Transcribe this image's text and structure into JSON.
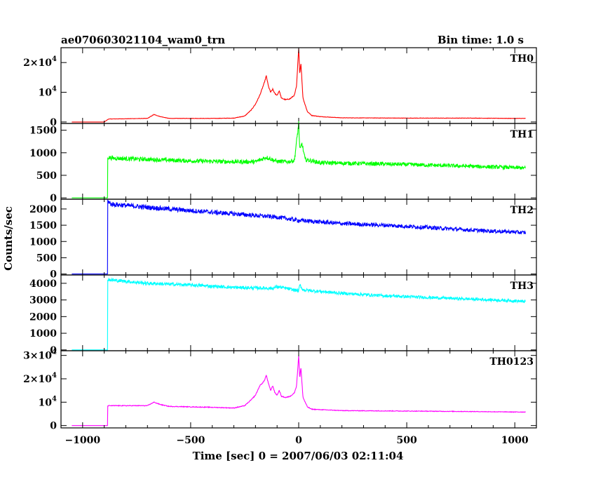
{
  "header": {
    "title": "ae070603021104_wam0_trn",
    "bin_time": "Bin time: 1.0 s"
  },
  "chart_data": {
    "type": "line",
    "xlabel": "Time [sec] 0 = 2007/06/03 02:11:04",
    "ylabel": "Counts/sec",
    "xlim": [
      -1100,
      1100
    ],
    "x_ticks": [
      -1000,
      -500,
      0,
      500,
      1000
    ],
    "x_tick_labels": [
      "−1000",
      "−500",
      "0",
      "500",
      "1000"
    ],
    "panels": [
      {
        "name": "TH0",
        "color": "#ff0000",
        "ylim": [
          -500,
          25000
        ],
        "y_ticks": [
          {
            "value": 0,
            "label": "0"
          },
          {
            "value": 10000,
            "label": "10",
            "exp": "4"
          },
          {
            "value": 20000,
            "label": "2×10",
            "exp": "4"
          }
        ],
        "x": [
          -1050,
          -900,
          -880,
          -700,
          -670,
          -640,
          -600,
          -400,
          -300,
          -250,
          -220,
          -200,
          -180,
          -160,
          -150,
          -140,
          -130,
          -120,
          -110,
          -100,
          -90,
          -80,
          -60,
          -40,
          -20,
          -10,
          0,
          5,
          10,
          20,
          40,
          60,
          100,
          200,
          500,
          800,
          1000,
          1050
        ],
        "values": [
          0,
          0,
          1000,
          1200,
          2500,
          1800,
          1200,
          1200,
          1300,
          2000,
          4000,
          6000,
          9000,
          13000,
          15500,
          12000,
          10000,
          11000,
          9500,
          9000,
          10500,
          8000,
          7500,
          7800,
          9000,
          12000,
          25000,
          16000,
          20000,
          8000,
          3500,
          2200,
          1800,
          1400,
          1300,
          1300,
          1200,
          1200
        ]
      },
      {
        "name": "TH1",
        "color": "#00ff00",
        "ylim": [
          -30,
          1650
        ],
        "y_ticks": [
          {
            "value": 0,
            "label": "0"
          },
          {
            "value": 500,
            "label": "500"
          },
          {
            "value": 1000,
            "label": "1000"
          },
          {
            "value": 1500,
            "label": "1500"
          }
        ],
        "x": [
          -1050,
          -885,
          -884,
          -860,
          -500,
          -300,
          -200,
          -150,
          -100,
          -50,
          -20,
          0,
          5,
          15,
          30,
          100,
          300,
          500,
          800,
          1000,
          1050
        ],
        "values": [
          0,
          0,
          900,
          880,
          820,
          800,
          800,
          900,
          810,
          800,
          830,
          1650,
          1050,
          1200,
          850,
          780,
          760,
          740,
          700,
          670,
          660
        ]
      },
      {
        "name": "TH2",
        "color": "#0000ff",
        "ylim": [
          -30,
          2300
        ],
        "y_ticks": [
          {
            "value": 0,
            "label": "0"
          },
          {
            "value": 500,
            "label": "500"
          },
          {
            "value": 1000,
            "label": "1000"
          },
          {
            "value": 1500,
            "label": "1500"
          },
          {
            "value": 2000,
            "label": "2000"
          }
        ],
        "x": [
          -1050,
          -885,
          -884,
          -870,
          -700,
          -500,
          -300,
          -100,
          0,
          200,
          400,
          600,
          800,
          1000,
          1050
        ],
        "values": [
          0,
          0,
          2250,
          2150,
          2050,
          1950,
          1850,
          1750,
          1650,
          1550,
          1500,
          1430,
          1350,
          1290,
          1270
        ]
      },
      {
        "name": "TH3",
        "color": "#00ffff",
        "ylim": [
          -50,
          4500
        ],
        "y_ticks": [
          {
            "value": 0,
            "label": "0"
          },
          {
            "value": 1000,
            "label": "1000"
          },
          {
            "value": 2000,
            "label": "2000"
          },
          {
            "value": 3000,
            "label": "3000"
          },
          {
            "value": 4000,
            "label": "4000"
          }
        ],
        "x": [
          -1050,
          -885,
          -884,
          -870,
          -700,
          -500,
          -300,
          -120,
          -100,
          0,
          5,
          20,
          200,
          400,
          600,
          800,
          1000,
          1050
        ],
        "values": [
          0,
          0,
          4250,
          4200,
          4000,
          3900,
          3750,
          3700,
          3800,
          3550,
          3900,
          3600,
          3400,
          3250,
          3150,
          3050,
          2950,
          2900
        ]
      },
      {
        "name": "TH0123",
        "color": "#ff00ff",
        "ylim": [
          -1000,
          32000
        ],
        "y_ticks": [
          {
            "value": 0,
            "label": "0"
          },
          {
            "value": 10000,
            "label": "10",
            "exp": "4"
          },
          {
            "value": 20000,
            "label": "2×10",
            "exp": "4"
          },
          {
            "value": 30000,
            "label": "3×10",
            "exp": "4"
          }
        ],
        "x": [
          -1050,
          -885,
          -884,
          -700,
          -670,
          -640,
          -600,
          -400,
          -300,
          -250,
          -220,
          -200,
          -180,
          -160,
          -150,
          -140,
          -130,
          -120,
          -110,
          -100,
          -90,
          -80,
          -60,
          -40,
          -20,
          -10,
          0,
          5,
          10,
          20,
          40,
          60,
          100,
          200,
          500,
          800,
          1000,
          1050
        ],
        "values": [
          0,
          0,
          8500,
          8500,
          10000,
          9000,
          8200,
          7800,
          7500,
          8500,
          11000,
          13000,
          17000,
          19000,
          21500,
          18000,
          15000,
          17000,
          14000,
          13000,
          15000,
          12500,
          12000,
          12500,
          14000,
          17000,
          30000,
          20000,
          25000,
          12000,
          8000,
          7000,
          6800,
          6400,
          6200,
          6000,
          5800,
          5800
        ]
      }
    ]
  }
}
